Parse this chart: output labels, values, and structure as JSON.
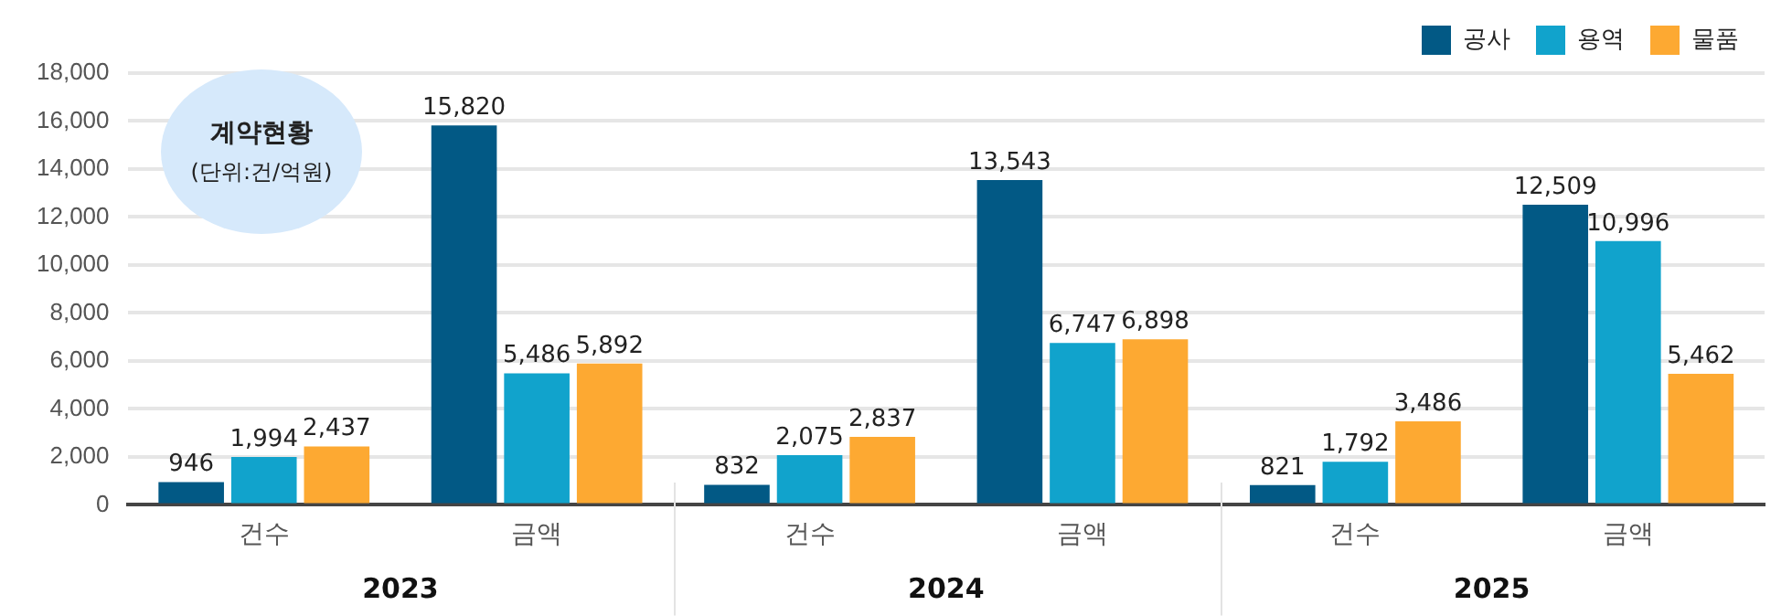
{
  "chart_data": {
    "type": "bar",
    "categories": [
      "건수",
      "금액",
      "건수",
      "금액",
      "건수",
      "금액"
    ],
    "series": [
      {
        "name": "공사",
        "color": "#025985",
        "values": [
          946,
          15820,
          832,
          13543,
          821,
          12509
        ],
        "value_labels": [
          "946",
          "15,820",
          "832",
          "13,543",
          "821",
          "12,509"
        ]
      },
      {
        "name": "용역",
        "color": "#11a3cc",
        "values": [
          1994,
          5486,
          2075,
          6747,
          1792,
          10996
        ],
        "value_labels": [
          "1,994",
          "5,486",
          "2,075",
          "6,747",
          "1,792",
          "10,996"
        ]
      },
      {
        "name": "물품",
        "color": "#fda932",
        "values": [
          2437,
          5892,
          2837,
          6898,
          3486,
          5462
        ],
        "value_labels": [
          "2,437",
          "5,892",
          "2,837",
          "6,898",
          "3,486",
          "5,462"
        ]
      }
    ],
    "ylim": [
      0,
      18000
    ],
    "yticks": [
      0,
      {
        "value": 2000,
        "label": "2,000"
      },
      {
        "value": 4000,
        "label": "4,000"
      },
      {
        "value": 6000,
        "label": "6,000"
      },
      {
        "value": 8000,
        "label": "8,000"
      },
      {
        "value": 10000,
        "label": "10,000"
      },
      {
        "value": 12000,
        "label": "12,000"
      },
      {
        "value": 14000,
        "label": "14,000"
      },
      {
        "value": 16000,
        "label": "16,000"
      },
      {
        "value": 18000,
        "label": "18,000"
      }
    ],
    "grid": "y",
    "legend": "top right",
    "annotations": [
      "계약현황",
      "(단위:건/억원)",
      "2023",
      "2024",
      "2025"
    ]
  }
}
